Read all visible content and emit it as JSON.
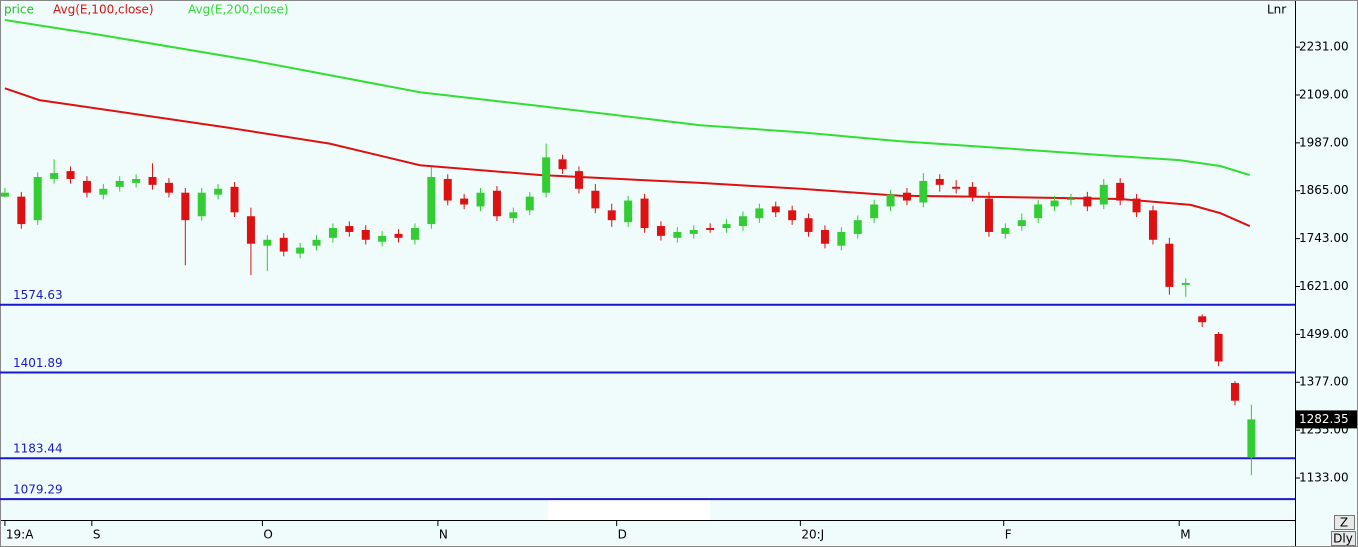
{
  "chart_data": {
    "type": "candlestick",
    "legend": [
      {
        "name": "price",
        "color": "#22c322"
      },
      {
        "name": "Avg(E,100,close)",
        "color": "#dd1111"
      },
      {
        "name": "Avg(E,200,close)",
        "color": "#33dd33"
      }
    ],
    "scale_label": "Lnr",
    "period_label": "Dly",
    "zoom_label": "Z",
    "up_color": "#33cc33",
    "down_color": "#dd1111",
    "open": [
      1850,
      1850,
      1790,
      1895,
      1915,
      1890,
      1855,
      1875,
      1885,
      1900,
      1885,
      1860,
      1800,
      1855,
      1875,
      1800,
      1725,
      1745,
      1705,
      1725,
      1745,
      1775,
      1765,
      1735,
      1755,
      1740,
      1780,
      1895,
      1845,
      1825,
      1865,
      1795,
      1815,
      1860,
      1945,
      1915,
      1865,
      1815,
      1785,
      1845,
      1775,
      1745,
      1755,
      1770,
      1770,
      1775,
      1795,
      1825,
      1815,
      1795,
      1765,
      1725,
      1755,
      1795,
      1825,
      1860,
      1835,
      1895,
      1875,
      1875,
      1845,
      1755,
      1775,
      1795,
      1825,
      1845,
      1850,
      1830,
      1885,
      1845,
      1815,
      1730,
      1625,
      1545,
      1500,
      1375,
      1185
    ],
    "high": [
      1872,
      1862,
      1912,
      1945,
      1927,
      1902,
      1882,
      1902,
      1907,
      1935,
      1897,
      1872,
      1872,
      1882,
      1887,
      1822,
      1752,
      1757,
      1732,
      1752,
      1782,
      1787,
      1777,
      1762,
      1767,
      1782,
      1925,
      1907,
      1857,
      1872,
      1877,
      1822,
      1862,
      1985,
      1957,
      1927,
      1882,
      1832,
      1852,
      1857,
      1787,
      1772,
      1777,
      1782,
      1792,
      1812,
      1832,
      1837,
      1827,
      1807,
      1777,
      1772,
      1802,
      1842,
      1867,
      1872,
      1910,
      1907,
      1892,
      1887,
      1862,
      1782,
      1807,
      1842,
      1852,
      1857,
      1862,
      1895,
      1897,
      1857,
      1827,
      1745,
      1642,
      1550,
      1505,
      1380,
      1320
    ],
    "low": [
      1848,
      1768,
      1778,
      1883,
      1883,
      1848,
      1843,
      1863,
      1873,
      1868,
      1848,
      1675,
      1788,
      1843,
      1798,
      1650,
      1660,
      1698,
      1693,
      1713,
      1733,
      1748,
      1728,
      1723,
      1733,
      1728,
      1768,
      1828,
      1818,
      1813,
      1788,
      1783,
      1803,
      1848,
      1908,
      1858,
      1808,
      1773,
      1773,
      1758,
      1738,
      1733,
      1743,
      1758,
      1758,
      1763,
      1783,
      1798,
      1778,
      1748,
      1718,
      1713,
      1743,
      1783,
      1813,
      1828,
      1823,
      1863,
      1858,
      1838,
      1748,
      1743,
      1763,
      1783,
      1813,
      1828,
      1813,
      1818,
      1828,
      1798,
      1728,
      1600,
      1595,
      1518,
      1418,
      1318,
      1140
    ],
    "close": [
      1860,
      1780,
      1900,
      1910,
      1895,
      1860,
      1870,
      1890,
      1895,
      1880,
      1860,
      1790,
      1860,
      1870,
      1810,
      1730,
      1740,
      1710,
      1720,
      1740,
      1770,
      1760,
      1740,
      1750,
      1745,
      1770,
      1900,
      1840,
      1830,
      1860,
      1800,
      1810,
      1850,
      1950,
      1920,
      1870,
      1820,
      1790,
      1840,
      1770,
      1750,
      1760,
      1765,
      1765,
      1780,
      1800,
      1820,
      1810,
      1790,
      1760,
      1730,
      1760,
      1790,
      1830,
      1855,
      1840,
      1890,
      1880,
      1870,
      1850,
      1760,
      1770,
      1790,
      1830,
      1840,
      1845,
      1825,
      1880,
      1840,
      1810,
      1740,
      1620,
      1630,
      1530,
      1430,
      1330,
      1282.35
    ],
    "series": [
      {
        "name": "Avg(E,100,close)",
        "color": "#dd1111",
        "x": [
          0,
          2.1,
          13.7,
          19.8,
          25.3,
          32.6,
          42.4,
          48.5,
          54.6,
          60.7,
          68,
          72.3,
          74.1,
          75.9
        ],
        "values": [
          2126,
          2096,
          2025,
          1985,
          1930,
          1905,
          1885,
          1870,
          1852,
          1849,
          1844,
          1829,
          1808,
          1775
        ]
      },
      {
        "name": "Avg(E,200,close)",
        "color": "#33dd33",
        "x": [
          0,
          5.8,
          14.9,
          25.3,
          32.6,
          42.4,
          48.5,
          54.6,
          60.7,
          66.8,
          71.6,
          74.1,
          75.9
        ],
        "values": [
          2300,
          2262,
          2198,
          2116,
          2081,
          2032,
          2014,
          1991,
          1974,
          1956,
          1943,
          1928,
          1905
        ]
      }
    ],
    "levels": [
      1574.63,
      1401.89,
      1183.44,
      1079.29
    ],
    "level_color": "#1a1acc",
    "xlim": [
      -0.3,
      78.66
    ],
    "xticks": [
      {
        "value": 0,
        "label": "19:A"
      },
      {
        "value": 5.3,
        "label": "S"
      },
      {
        "value": 15.7,
        "label": "O"
      },
      {
        "value": 26.4,
        "label": "N"
      },
      {
        "value": 37.3,
        "label": "D"
      },
      {
        "value": 48.5,
        "label": "20:J"
      },
      {
        "value": 60.9,
        "label": "F"
      },
      {
        "value": 71.6,
        "label": "M"
      }
    ],
    "ylim": [
      1026,
      2351
    ],
    "yticks": [
      {
        "value": 2231,
        "label": "2231.00"
      },
      {
        "value": 2109,
        "label": "2109.00"
      },
      {
        "value": 1987,
        "label": "1987.00"
      },
      {
        "value": 1865,
        "label": "1865.00"
      },
      {
        "value": 1743,
        "label": "1743.00"
      },
      {
        "value": 1621,
        "label": "1621.00"
      },
      {
        "value": 1499,
        "label": "1499.00"
      },
      {
        "value": 1377,
        "label": "1377.00"
      },
      {
        "value": 1255,
        "label": "1255.00"
      },
      {
        "value": 1133,
        "label": "1133.00"
      }
    ]
  }
}
